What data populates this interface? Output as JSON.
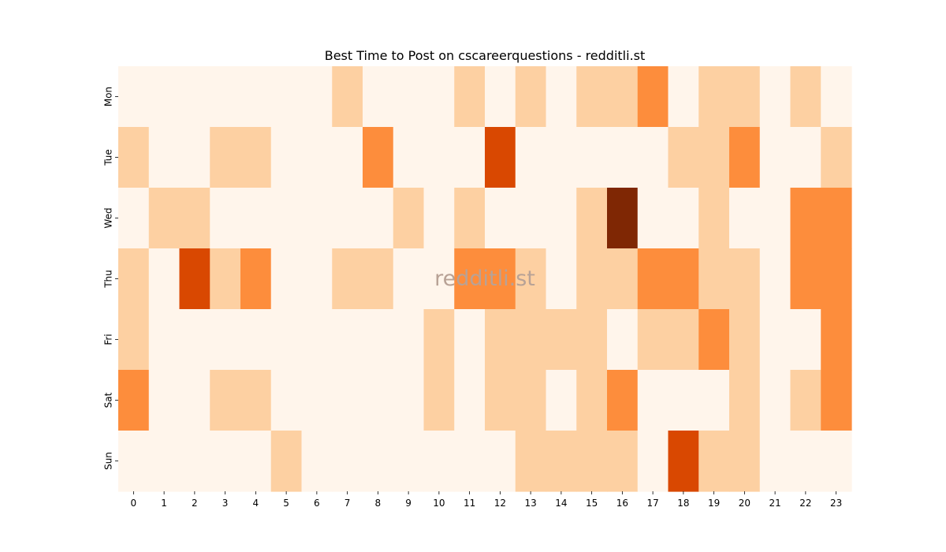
{
  "chart_data": {
    "type": "heatmap",
    "title": "Best Time to Post on cscareerquestions - redditli.st",
    "watermark": "redditli.st",
    "x_categories": [
      "0",
      "1",
      "2",
      "3",
      "4",
      "5",
      "6",
      "7",
      "8",
      "9",
      "10",
      "11",
      "12",
      "13",
      "14",
      "15",
      "16",
      "17",
      "18",
      "19",
      "20",
      "21",
      "22",
      "23"
    ],
    "y_categories": [
      "Mon",
      "Tue",
      "Wed",
      "Thu",
      "Fri",
      "Sat",
      "Sun"
    ],
    "values": [
      [
        0,
        0,
        0,
        0,
        0,
        0,
        0,
        1,
        0,
        0,
        0,
        1,
        0,
        1,
        0,
        1,
        1,
        2,
        0,
        1,
        1,
        0,
        1,
        0
      ],
      [
        1,
        0,
        0,
        1,
        1,
        0,
        0,
        0,
        2,
        0,
        0,
        0,
        3,
        0,
        0,
        0,
        0,
        0,
        1,
        1,
        2,
        0,
        0,
        1
      ],
      [
        0,
        1,
        1,
        0,
        0,
        0,
        0,
        0,
        0,
        1,
        0,
        1,
        0,
        0,
        0,
        1,
        4,
        0,
        0,
        1,
        0,
        0,
        2,
        2
      ],
      [
        1,
        0,
        3,
        1,
        2,
        0,
        0,
        1,
        1,
        0,
        0,
        2,
        2,
        1,
        0,
        1,
        1,
        2,
        2,
        1,
        1,
        0,
        2,
        2
      ],
      [
        1,
        0,
        0,
        0,
        0,
        0,
        0,
        0,
        0,
        0,
        1,
        0,
        1,
        1,
        1,
        1,
        0,
        1,
        1,
        2,
        1,
        0,
        0,
        2
      ],
      [
        2,
        0,
        0,
        1,
        1,
        0,
        0,
        0,
        0,
        0,
        1,
        0,
        1,
        1,
        0,
        1,
        2,
        0,
        0,
        0,
        1,
        0,
        1,
        2
      ],
      [
        0,
        0,
        0,
        0,
        0,
        1,
        0,
        0,
        0,
        0,
        0,
        0,
        0,
        1,
        1,
        1,
        1,
        0,
        3,
        1,
        1,
        0,
        0,
        0
      ]
    ],
    "value_range": [
      0,
      4
    ],
    "colors": [
      "#fff5eb",
      "#fdd0a2",
      "#fd8d3c",
      "#d94801",
      "#7f2704"
    ],
    "colorbar": false,
    "grid": false
  }
}
